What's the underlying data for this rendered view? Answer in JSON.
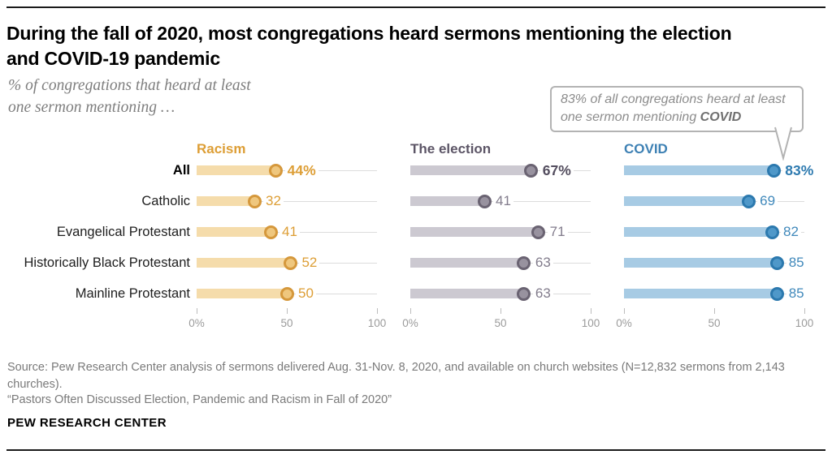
{
  "header": {
    "title_lines": [
      "During the fall of 2020, most congregations heard sermons mentioning the election",
      "and COVID-19 pandemic"
    ],
    "subtitle_lines": [
      "% of congregations that heard at least",
      "one sermon mentioning …"
    ]
  },
  "callout": {
    "text": "83% of all congregations heard at least one sermon mentioning ",
    "bold_text": "COVID"
  },
  "chart_data": {
    "type": "bar",
    "orientation": "horizontal",
    "categories": [
      "All",
      "Catholic",
      "Evangelical Protestant",
      "Historically Black Protestant",
      "Mainline Protestant"
    ],
    "series": [
      {
        "name": "Racism",
        "values": [
          44,
          32,
          41,
          52,
          50
        ],
        "value_labels": [
          "44%",
          "32",
          "41",
          "52",
          "50"
        ],
        "colors": {
          "header": "#dd9e35",
          "bar": "#f5dcab",
          "dot_fill": "#efc77e",
          "dot_stroke": "#d5983c",
          "value": "#dd9e35",
          "value_all": "#dd9e35"
        }
      },
      {
        "name": "The election",
        "values": [
          67,
          41,
          71,
          63,
          63
        ],
        "value_labels": [
          "67%",
          "41",
          "71",
          "63",
          "63"
        ],
        "colors": {
          "header": "#5c5566",
          "bar": "#ccc9d1",
          "dot_fill": "#98929f",
          "dot_stroke": "#6a6372",
          "value": "#827c8c",
          "value_all": "#544e5f"
        }
      },
      {
        "name": "COVID",
        "values": [
          83,
          69,
          82,
          85,
          85
        ],
        "value_labels": [
          "83%",
          "69",
          "82",
          "85",
          "85"
        ],
        "colors": {
          "header": "#3e81b4",
          "bar": "#a7cbe4",
          "dot_fill": "#4f98c9",
          "dot_stroke": "#2c79ae",
          "value": "#4189bb",
          "value_all": "#2f7bb0"
        }
      }
    ],
    "xlim": [
      0,
      100
    ],
    "axis_ticks": [
      "0%",
      "50",
      "100"
    ],
    "grid": false,
    "legend": false
  },
  "footer": {
    "source": "Source: Pew Research Center analysis of sermons delivered Aug. 31-Nov. 8, 2020, and available on church websites (N=12,832 sermons from 2,143 churches).",
    "quote": "“Pastors Often Discussed Election, Pandemic and Racism in Fall of 2020”",
    "brand": "PEW RESEARCH CENTER"
  }
}
